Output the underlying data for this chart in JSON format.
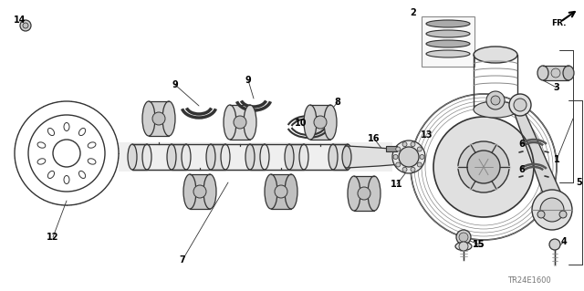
{
  "bg": "#ffffff",
  "lc": "#333333",
  "watermark": "TR24E1600",
  "figsize": [
    6.4,
    3.19
  ],
  "dpi": 100
}
